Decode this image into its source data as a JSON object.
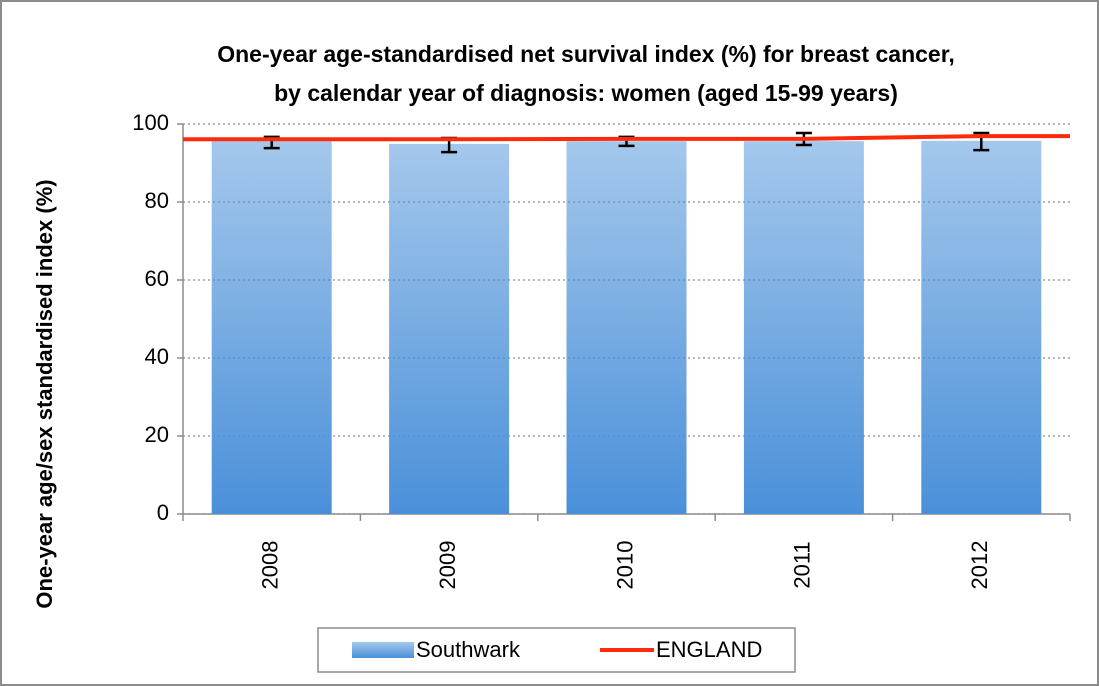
{
  "chart_data": {
    "type": "bar",
    "title": [
      "One-year age-standardised net survival index (%) for breast cancer,",
      "by calendar year of diagnosis: women (aged 15-99 years)"
    ],
    "y_label": "One-year age/sex standardised index (%)",
    "categories": [
      "2008",
      "2009",
      "2010",
      "2011",
      "2012"
    ],
    "series": [
      {
        "name": "Southwark",
        "type": "bar",
        "color": "#4a90d9",
        "values": [
          95.6,
          94.9,
          95.6,
          95.6,
          95.7
        ],
        "ci_lower": [
          93.8,
          92.8,
          94.4,
          94.6,
          93.3
        ],
        "ci_upper": [
          96.7,
          96.4,
          96.7,
          97.7,
          97.7
        ]
      },
      {
        "name": "ENGLAND",
        "type": "line",
        "color": "#ff2a0a",
        "values": [
          96.1,
          96.1,
          96.2,
          96.2,
          96.9
        ]
      }
    ],
    "ylim": [
      0,
      100
    ],
    "yticks": [
      0,
      20,
      40,
      60,
      80,
      100
    ],
    "grid": true,
    "legend": "bottom"
  }
}
